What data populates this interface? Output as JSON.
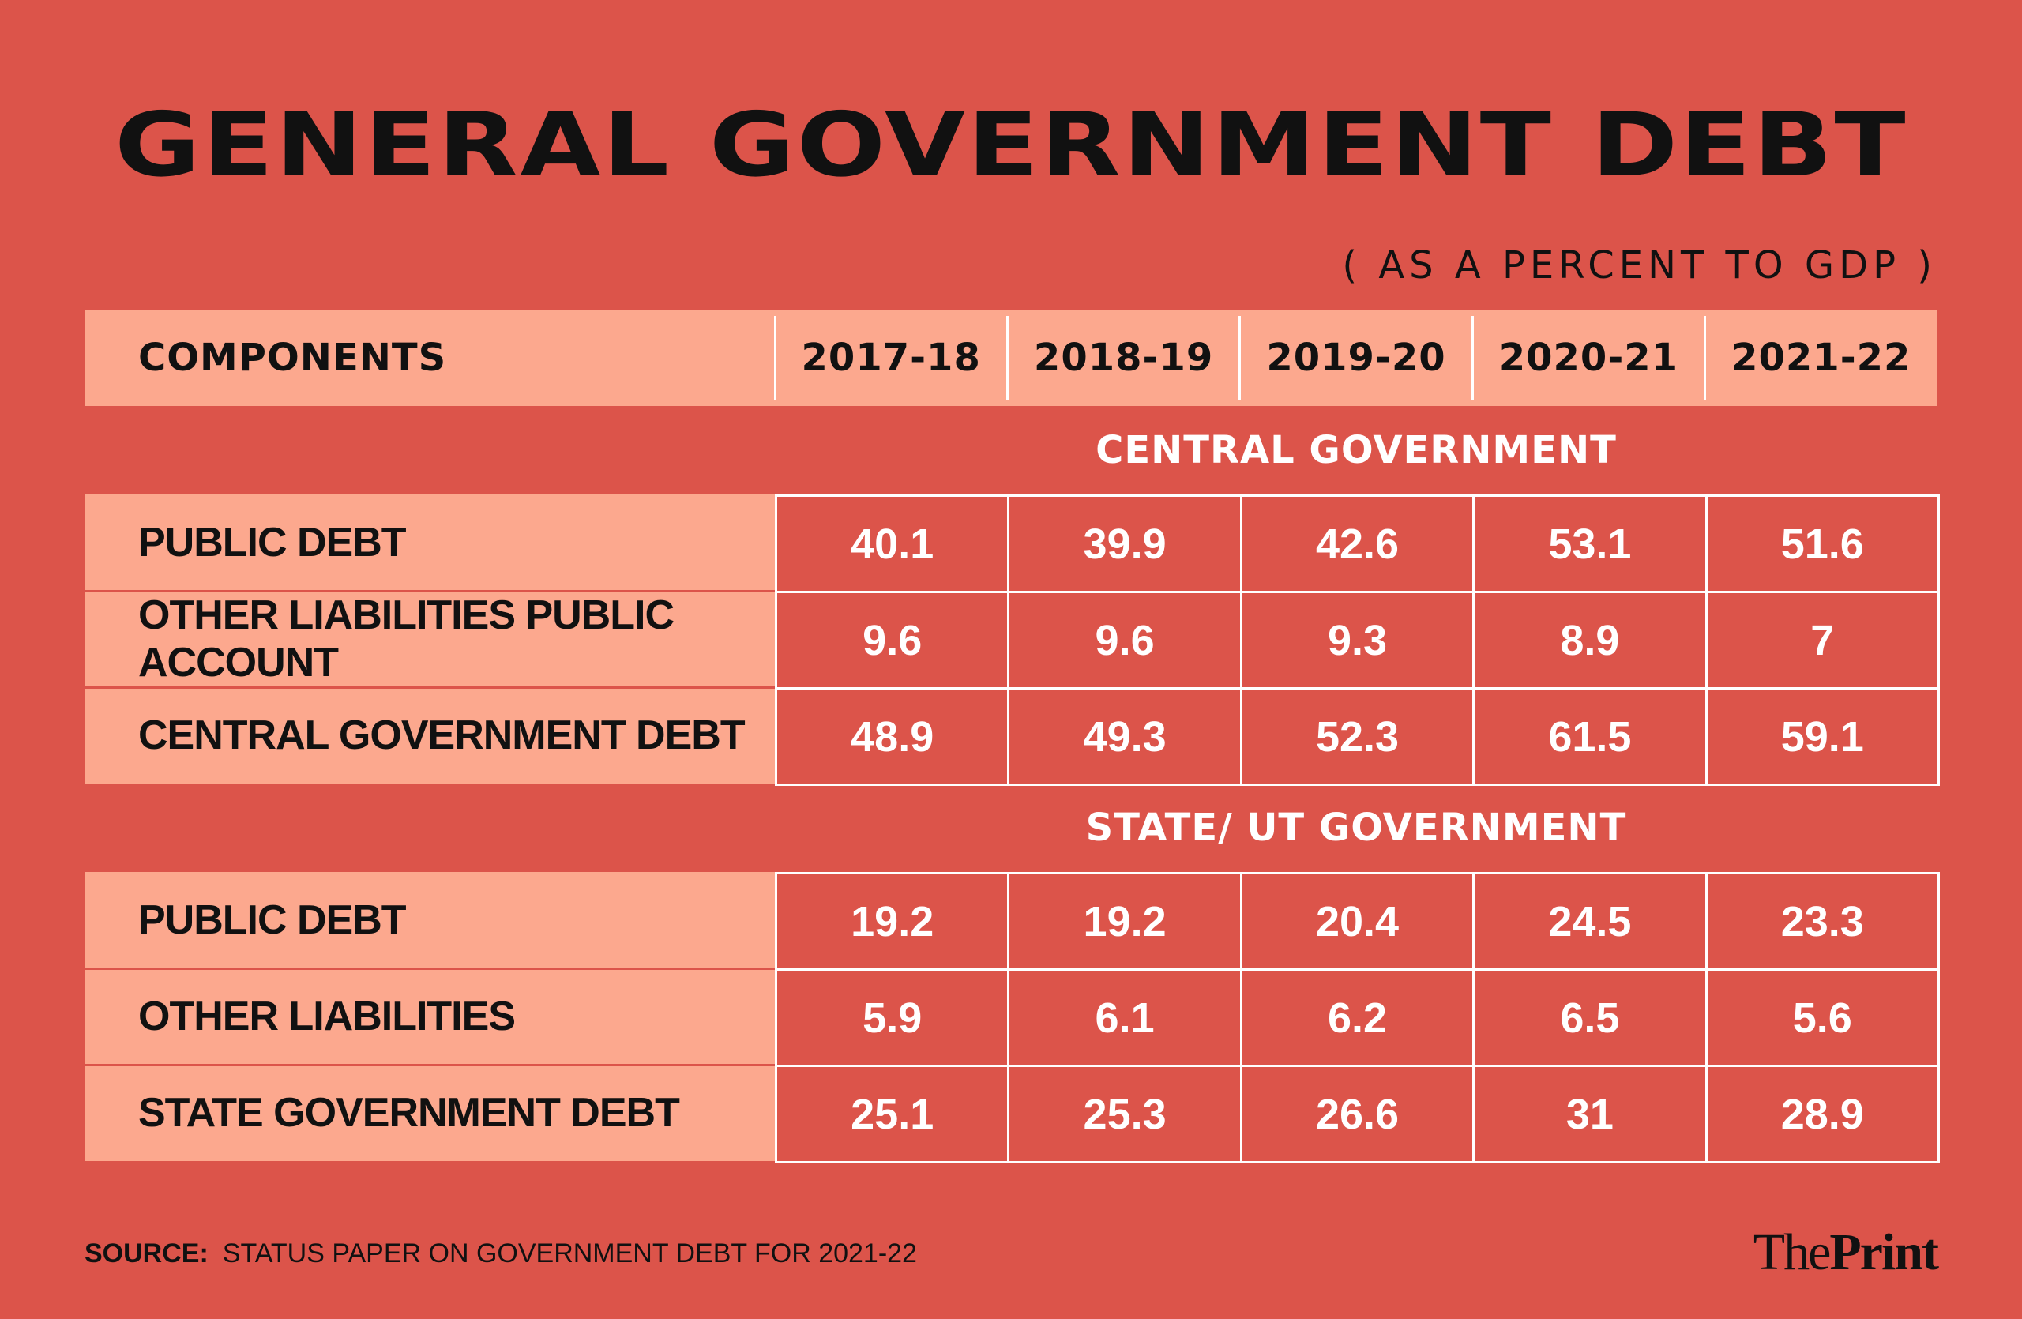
{
  "chart_data": {
    "type": "table",
    "title": "GENERAL GOVERNMENT DEBT",
    "subtitle": "( AS A PERCENT TO GDP )",
    "columns": [
      "COMPONENTS",
      "2017-18",
      "2018-19",
      "2019-20",
      "2020-21",
      "2021-22"
    ],
    "sections": [
      {
        "name": "CENTRAL GOVERNMENT",
        "rows": [
          {
            "label": "PUBLIC DEBT",
            "values": [
              "40.1",
              "39.9",
              "42.6",
              "53.1",
              "51.6"
            ]
          },
          {
            "label": "OTHER LIABILITIES PUBLIC ACCOUNT",
            "values": [
              "9.6",
              "9.6",
              "9.3",
              "8.9",
              "7"
            ]
          },
          {
            "label": "CENTRAL GOVERNMENT DEBT",
            "values": [
              "48.9",
              "49.3",
              "52.3",
              "61.5",
              "59.1"
            ]
          }
        ]
      },
      {
        "name": "STATE/ UT GOVERNMENT",
        "rows": [
          {
            "label": "PUBLIC DEBT",
            "values": [
              "19.2",
              "19.2",
              "20.4",
              "24.5",
              "23.3"
            ]
          },
          {
            "label": "OTHER LIABILITIES",
            "values": [
              "5.9",
              "6.1",
              "6.2",
              "6.5",
              "5.6"
            ]
          },
          {
            "label": "STATE GOVERNMENT DEBT",
            "values": [
              "25.1",
              "25.3",
              "26.6",
              "31",
              "28.9"
            ]
          }
        ]
      }
    ]
  },
  "source": {
    "label": "SOURCE:",
    "text": "STATUS PAPER ON GOVERNMENT DEBT FOR 2021-22"
  },
  "logo": {
    "part1": "The",
    "part2": "Print"
  },
  "colors": {
    "background": "#dc544a",
    "label_fill": "#fca88e",
    "grid_lines": "#ffffff",
    "title_text": "#111111"
  }
}
